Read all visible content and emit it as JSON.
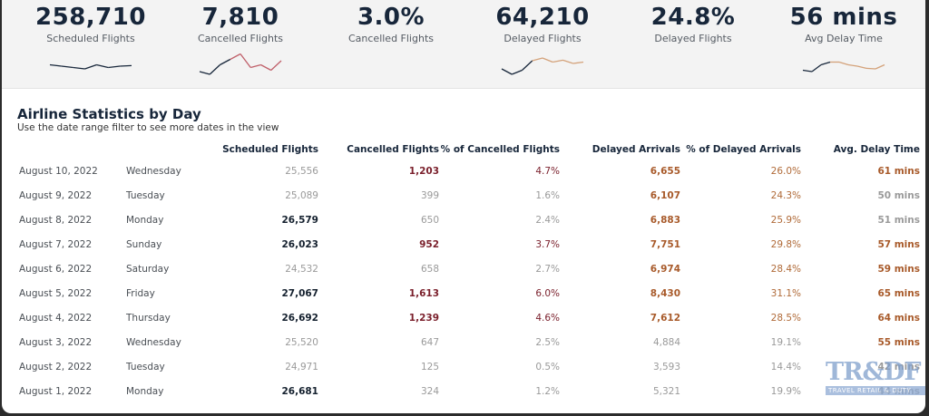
{
  "kpis": [
    {
      "value": "258,710",
      "label": "Scheduled Flights",
      "sparkline": [
        0.55,
        0.5,
        0.45,
        0.4,
        0.55,
        0.45,
        0.5,
        0.52
      ],
      "spark_colors": [
        "#17263a"
      ]
    },
    {
      "value": "7,810",
      "label": "Cancelled Flights",
      "sparkline": [
        0.3,
        0.2,
        0.55,
        0.75,
        0.95,
        0.45,
        0.55,
        0.35,
        0.7
      ],
      "spark_colors": [
        "#17263a",
        "#c0606a"
      ]
    },
    {
      "value": "3.0%",
      "label": "Cancelled Flights",
      "sparkline": [],
      "spark_colors": []
    },
    {
      "value": "64,210",
      "label": "Delayed Flights",
      "sparkline": [
        0.4,
        0.2,
        0.35,
        0.7,
        0.8,
        0.65,
        0.72,
        0.6,
        0.65
      ],
      "spark_colors": [
        "#17263a",
        "#d4a27a"
      ]
    },
    {
      "value": "24.8%",
      "label": "Delayed Flights",
      "sparkline": [],
      "spark_colors": []
    },
    {
      "value": "56 mins",
      "label": "Avg Delay Time",
      "sparkline": [
        0.35,
        0.3,
        0.55,
        0.65,
        0.65,
        0.55,
        0.5,
        0.42,
        0.4,
        0.55
      ],
      "spark_colors": [
        "#17263a",
        "#d4a27a"
      ]
    }
  ],
  "section": {
    "title": "Airline Statistics by Day",
    "subtitle": "Use the date range filter to see more dates in the view"
  },
  "table": {
    "columns": [
      "",
      "",
      "Scheduled Flights",
      "Cancelled Flights",
      "% of Cancelled Flights",
      "Delayed Arrivals",
      "% of Delayed Arrivals",
      "Avg. Delay Time"
    ],
    "rows": [
      {
        "date": "August 10, 2022",
        "day": "Wednesday",
        "scheduled": "25,556",
        "cancelled": "1,203",
        "pct_cancelled": "4.7%",
        "delayed": "6,655",
        "pct_delayed": "26.0%",
        "avg_delay": "61 mins",
        "style": [
          "muted",
          "red",
          "redlite",
          "orange",
          "orangelite",
          "orange"
        ]
      },
      {
        "date": "August 9, 2022",
        "day": "Tuesday",
        "scheduled": "25,089",
        "cancelled": "399",
        "pct_cancelled": "1.6%",
        "delayed": "6,107",
        "pct_delayed": "24.3%",
        "avg_delay": "50 mins",
        "style": [
          "muted",
          "muted",
          "muted",
          "orange",
          "orangelite",
          "mutedbold"
        ]
      },
      {
        "date": "August 8, 2022",
        "day": "Monday",
        "scheduled": "26,579",
        "cancelled": "650",
        "pct_cancelled": "2.4%",
        "delayed": "6,883",
        "pct_delayed": "25.9%",
        "avg_delay": "51 mins",
        "style": [
          "bold-dark",
          "muted",
          "muted",
          "orange",
          "orangelite",
          "mutedbold"
        ]
      },
      {
        "date": "August 7, 2022",
        "day": "Sunday",
        "scheduled": "26,023",
        "cancelled": "952",
        "pct_cancelled": "3.7%",
        "delayed": "7,751",
        "pct_delayed": "29.8%",
        "avg_delay": "57 mins",
        "style": [
          "bold-dark",
          "red",
          "redlite",
          "orange",
          "orangelite",
          "orange"
        ]
      },
      {
        "date": "August 6, 2022",
        "day": "Saturday",
        "scheduled": "24,532",
        "cancelled": "658",
        "pct_cancelled": "2.7%",
        "delayed": "6,974",
        "pct_delayed": "28.4%",
        "avg_delay": "59 mins",
        "style": [
          "muted",
          "muted",
          "muted",
          "orange",
          "orangelite",
          "orange"
        ]
      },
      {
        "date": "August 5, 2022",
        "day": "Friday",
        "scheduled": "27,067",
        "cancelled": "1,613",
        "pct_cancelled": "6.0%",
        "delayed": "8,430",
        "pct_delayed": "31.1%",
        "avg_delay": "65 mins",
        "style": [
          "bold-dark",
          "red",
          "redlite",
          "orange",
          "orangelite",
          "orange"
        ]
      },
      {
        "date": "August 4, 2022",
        "day": "Thursday",
        "scheduled": "26,692",
        "cancelled": "1,239",
        "pct_cancelled": "4.6%",
        "delayed": "7,612",
        "pct_delayed": "28.5%",
        "avg_delay": "64 mins",
        "style": [
          "bold-dark",
          "red",
          "redlite",
          "orange",
          "orangelite",
          "orange"
        ]
      },
      {
        "date": "August 3, 2022",
        "day": "Wednesday",
        "scheduled": "25,520",
        "cancelled": "647",
        "pct_cancelled": "2.5%",
        "delayed": "4,884",
        "pct_delayed": "19.1%",
        "avg_delay": "55 mins",
        "style": [
          "muted",
          "muted",
          "muted",
          "muted",
          "muted",
          "orange"
        ]
      },
      {
        "date": "August 2, 2022",
        "day": "Tuesday",
        "scheduled": "24,971",
        "cancelled": "125",
        "pct_cancelled": "0.5%",
        "delayed": "3,593",
        "pct_delayed": "14.4%",
        "avg_delay": "42 mins",
        "style": [
          "muted",
          "muted",
          "muted",
          "muted",
          "muted",
          "mutedbold"
        ]
      },
      {
        "date": "August 1, 2022",
        "day": "Monday",
        "scheduled": "26,681",
        "cancelled": "324",
        "pct_cancelled": "1.2%",
        "delayed": "5,321",
        "pct_delayed": "19.9%",
        "avg_delay": "44 mins",
        "style": [
          "bold-dark",
          "muted",
          "muted",
          "muted",
          "muted",
          "mutedbold"
        ]
      }
    ]
  },
  "watermark": {
    "big": "TR&DF",
    "small": "TRAVEL RETAIL & DUTY FREE"
  }
}
